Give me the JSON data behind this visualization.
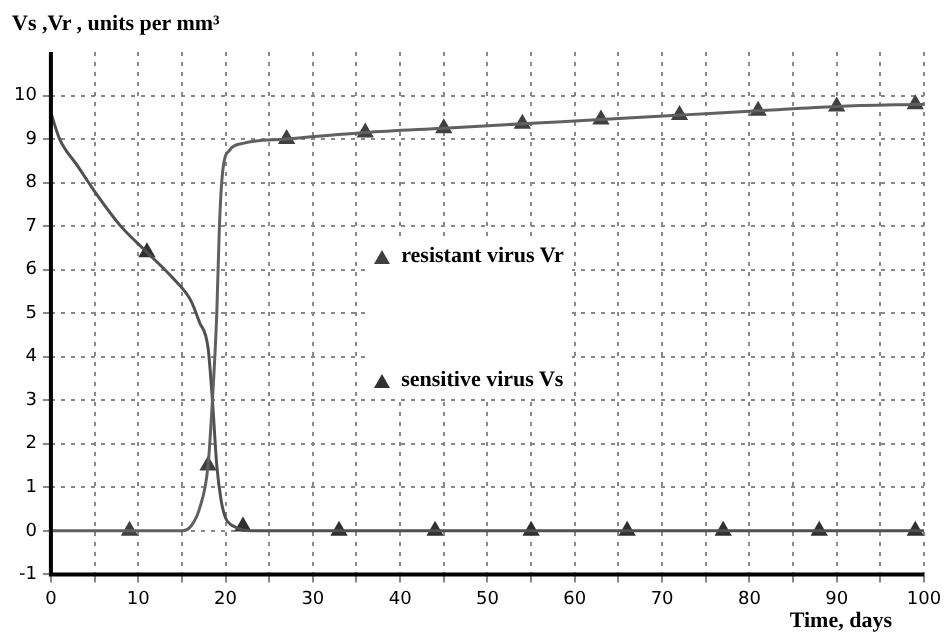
{
  "chart_data": {
    "type": "line",
    "ylabel": "Vs ,Vr , units per mm³",
    "xlabel": "Time, days",
    "xlim": [
      0,
      100
    ],
    "xticks": [
      0,
      {
        "value": 5,
        "label": null
      },
      10,
      {
        "value": 15,
        "label": null
      },
      20,
      {
        "value": 25,
        "label": null
      },
      30,
      {
        "value": 35,
        "label": null
      },
      40,
      {
        "value": 45,
        "label": null
      },
      50,
      {
        "value": 55,
        "label": null
      },
      60,
      {
        "value": 65,
        "label": null
      },
      70,
      {
        "value": 75,
        "label": null
      },
      80,
      {
        "value": 85,
        "label": null
      },
      90,
      {
        "value": 95,
        "label": null
      },
      100
    ],
    "ylim": [
      -1,
      11
    ],
    "yticks": [
      -1,
      0,
      1,
      2,
      3,
      4,
      5,
      6,
      7,
      8,
      9,
      10
    ],
    "grid": true,
    "legend": "center",
    "series": [
      {
        "marker": "none",
        "color": "#606060",
        "x": [
          0,
          15,
          16,
          17,
          18,
          18.5,
          19,
          19.3,
          19.7,
          20.5,
          22,
          27,
          36,
          45,
          54,
          63,
          72,
          81,
          90,
          100
        ],
        "values": [
          0,
          0,
          0.1,
          0.5,
          1.5,
          3,
          5,
          7,
          8.3,
          8.75,
          8.9,
          9.0,
          9.15,
          9.25,
          9.35,
          9.45,
          9.55,
          9.65,
          9.75,
          9.8
        ]
      },
      {
        "marker": "none",
        "color": "#505050",
        "x": [
          0,
          1,
          3,
          5,
          8,
          11,
          14,
          16,
          17,
          18,
          18.5,
          19,
          19.5,
          20,
          21,
          23,
          100
        ],
        "values": [
          9.6,
          9.0,
          8.4,
          7.8,
          7.0,
          6.4,
          5.8,
          5.3,
          4.8,
          4.2,
          3,
          1.5,
          0.7,
          0.3,
          0.1,
          0,
          0
        ]
      },
      {
        "type": "scatter",
        "name": "resistant virus Vr",
        "marker": "triangle",
        "color": "#404040",
        "x": [
          9,
          18,
          27,
          36,
          45,
          54,
          63,
          72,
          81,
          90,
          99
        ],
        "values": [
          0,
          1.5,
          9.0,
          9.15,
          9.25,
          9.35,
          9.45,
          9.55,
          9.65,
          9.75,
          9.8
        ]
      },
      {
        "type": "scatter",
        "name": "sensitive virus Vs",
        "marker": "triangle",
        "color": "#303030",
        "x": [
          11,
          22,
          33,
          44,
          55,
          66,
          77,
          88,
          99
        ],
        "values": [
          6.4,
          0.1,
          0,
          0,
          0,
          0,
          0,
          0,
          0
        ]
      }
    ]
  }
}
